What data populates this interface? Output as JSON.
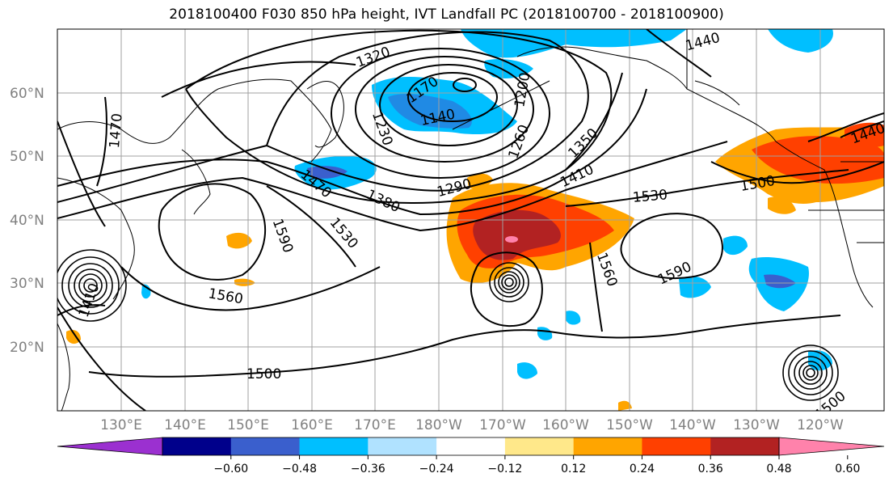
{
  "title": "2018100400 F030 850 hPa height, IVT Landfall PC (2018100700 - 2018100900)",
  "lat_labels": [
    "60°N",
    "50°N",
    "40°N",
    "30°N",
    "20°N"
  ],
  "lon_labels": [
    "130°E",
    "140°E",
    "150°E",
    "160°E",
    "170°E",
    "180°W",
    "170°W",
    "160°W",
    "150°W",
    "140°W",
    "130°W",
    "120°W"
  ],
  "contour_labels": [
    "1320",
    "1170",
    "1140",
    "1200",
    "1230",
    "1260",
    "1350",
    "1410",
    "1290",
    "1380",
    "1470",
    "1530",
    "1590",
    "1560",
    "1500",
    "1440",
    "1470",
    "1500",
    "1590",
    "1560",
    "1530",
    "1500",
    "1440",
    "1410"
  ],
  "colorbar": {
    "ticks": [
      "−0.60",
      "−0.48",
      "−0.36",
      "−0.24",
      "−0.12",
      "0.12",
      "0.24",
      "0.36",
      "0.48",
      "0.60"
    ],
    "colors": [
      "#9b30d0",
      "#00008b",
      "#3a5fcd",
      "#00bfff",
      "#b0e2ff",
      "#ffffff",
      "#ffe88a",
      "#ffa500",
      "#ff4000",
      "#b22222",
      "#ff82ab"
    ]
  },
  "colors": {
    "coast": "#000000",
    "grid": "#a0a0a0",
    "axis_label": "#808080"
  }
}
